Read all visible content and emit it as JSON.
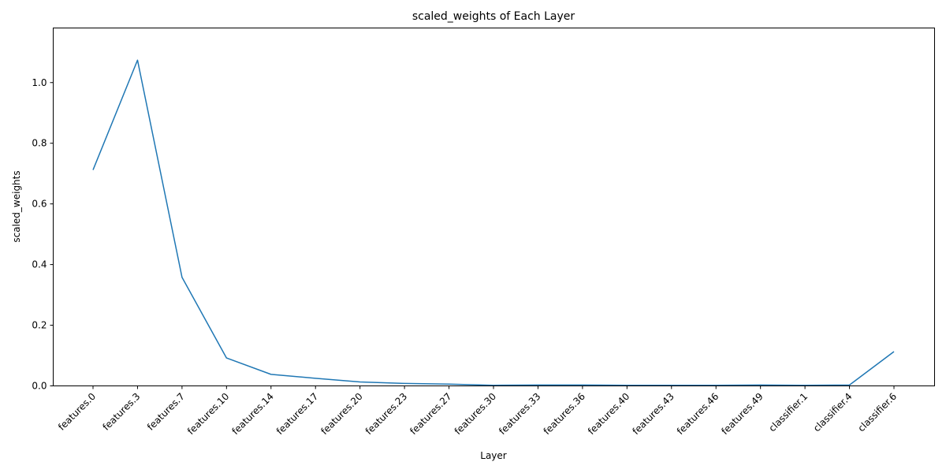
{
  "chart_data": {
    "type": "line",
    "title": "scaled_weights of Each Layer",
    "xlabel": "Layer",
    "ylabel": "scaled_weights",
    "categories": [
      "features.0",
      "features.3",
      "features.7",
      "features.10",
      "features.14",
      "features.17",
      "features.20",
      "features.23",
      "features.27",
      "features.30",
      "features.33",
      "features.36",
      "features.40",
      "features.43",
      "features.46",
      "features.49",
      "classifier.1",
      "classifier.4",
      "classifier.6"
    ],
    "series": [
      {
        "values": [
          0.712,
          1.074,
          0.358,
          0.092,
          0.038,
          0.025,
          0.013,
          0.008,
          0.006,
          0.002,
          0.003,
          0.003,
          0.002,
          0.002,
          0.002,
          0.003,
          0.002,
          0.003,
          0.113
        ],
        "color": "#1f77b4"
      }
    ],
    "yticks": [
      0.0,
      0.2,
      0.4,
      0.6,
      0.8,
      1.0
    ],
    "ytick_labels": [
      "0.0",
      "0.2",
      "0.4",
      "0.6",
      "0.8",
      "1.0"
    ],
    "ylim": [
      0.0,
      1.18
    ],
    "grid": false,
    "legend": "none"
  }
}
